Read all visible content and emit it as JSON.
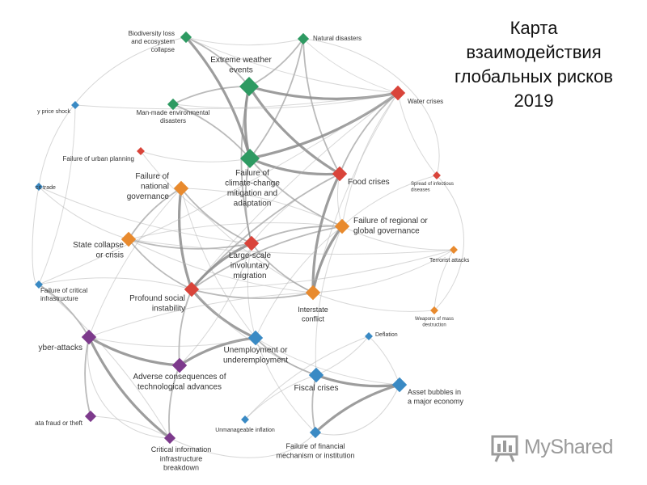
{
  "title": {
    "lines": [
      "Карта",
      "взаимодействия",
      "глобальных рисков",
      "2019"
    ]
  },
  "watermark": {
    "text": "MyShared"
  },
  "colors": {
    "environmental": "#2e9a62",
    "economic": "#3a8ac4",
    "geopolitical": "#e88a2e",
    "societal": "#d9443a",
    "technological": "#7d3a8c",
    "edge": "#b8b8b8",
    "edge_strong": "#8c8c8c"
  },
  "nodes": [
    {
      "id": "biodiversity",
      "category": "environmental",
      "size": "small",
      "label": [
        "Biodiversity loss",
        "and ecosystem",
        "collapse"
      ]
    },
    {
      "id": "natural_disasters",
      "category": "environmental",
      "size": "small",
      "label": [
        "Natural disasters"
      ]
    },
    {
      "id": "extreme_weather",
      "category": "environmental",
      "size": "large",
      "label": [
        "Extreme weather",
        "events"
      ]
    },
    {
      "id": "man_made",
      "category": "environmental",
      "size": "small",
      "label": [
        "Man-made environmental",
        "disasters"
      ]
    },
    {
      "id": "climate_change",
      "category": "environmental",
      "size": "large",
      "label": [
        "Failure of",
        "climate-change",
        "mitigation and",
        "adaptation"
      ]
    },
    {
      "id": "water_crises",
      "category": "societal",
      "size": "medium",
      "label": [
        "Water crises"
      ]
    },
    {
      "id": "energy_price",
      "category": "economic",
      "size": "tiny",
      "label": [
        "y price shock"
      ]
    },
    {
      "id": "urban_planning",
      "category": "societal",
      "size": "tiny",
      "label": [
        "Failure of urban planning"
      ]
    },
    {
      "id": "illicit_trade",
      "category": "economic",
      "size": "tiny",
      "label": [
        "cit trade"
      ]
    },
    {
      "id": "national_governance",
      "category": "geopolitical",
      "size": "medium",
      "label": [
        "Failure of",
        "national",
        "governance"
      ]
    },
    {
      "id": "food_crises",
      "category": "societal",
      "size": "medium",
      "label": [
        "Food crises"
      ]
    },
    {
      "id": "infectious_diseases",
      "category": "societal",
      "size": "tiny",
      "label": [
        "Spread of infectious",
        "diseases"
      ]
    },
    {
      "id": "regional_governance",
      "category": "geopolitical",
      "size": "medium",
      "label": [
        "Failure of regional or",
        "global governance"
      ]
    },
    {
      "id": "state_collapse",
      "category": "geopolitical",
      "size": "medium",
      "label": [
        "State collapse",
        "or crisis"
      ]
    },
    {
      "id": "terrorist_attacks",
      "category": "geopolitical",
      "size": "tiny",
      "label": [
        "Terrorist attacks"
      ]
    },
    {
      "id": "involuntary_migration",
      "category": "societal",
      "size": "medium",
      "label": [
        "Large-scale",
        "involuntary",
        "migration"
      ]
    },
    {
      "id": "critical_infrastructure",
      "category": "economic",
      "size": "tiny",
      "label": [
        "Failure of critical",
        "infrastructure"
      ]
    },
    {
      "id": "social_instability",
      "category": "societal",
      "size": "medium",
      "label": [
        "Profound social",
        "instability"
      ]
    },
    {
      "id": "interstate_conflict",
      "category": "geopolitical",
      "size": "medium",
      "label": [
        "Interstate",
        "conflict"
      ]
    },
    {
      "id": "mass_destruction",
      "category": "geopolitical",
      "size": "tiny",
      "label": [
        "Weapons of mass",
        "destruction"
      ]
    },
    {
      "id": "cyber_attacks",
      "category": "technological",
      "size": "medium",
      "label": [
        "yber-attacks"
      ]
    },
    {
      "id": "unemployment",
      "category": "economic",
      "size": "medium",
      "label": [
        "Unemployment or",
        "underemployment"
      ]
    },
    {
      "id": "deflation",
      "category": "economic",
      "size": "tiny",
      "label": [
        "Deflation"
      ]
    },
    {
      "id": "adverse_tech",
      "category": "technological",
      "size": "medium",
      "label": [
        "Adverse consequences of",
        "technological advances"
      ]
    },
    {
      "id": "fiscal_crises",
      "category": "economic",
      "size": "medium",
      "label": [
        "Fiscal crises"
      ]
    },
    {
      "id": "asset_bubbles",
      "category": "economic",
      "size": "medium",
      "label": [
        "Asset bubbles in",
        "a major economy"
      ]
    },
    {
      "id": "data_fraud",
      "category": "technological",
      "size": "small",
      "label": [
        "ata fraud or theft"
      ]
    },
    {
      "id": "unmanageable_inflation",
      "category": "economic",
      "size": "tiny",
      "label": [
        "Unmanageable inflation"
      ]
    },
    {
      "id": "info_breakdown",
      "category": "technological",
      "size": "small",
      "label": [
        "Critical information",
        "infrastructure",
        "breakdown"
      ]
    },
    {
      "id": "financial_failure",
      "category": "economic",
      "size": "small",
      "label": [
        "Failure of financial",
        "mechanism or institution"
      ]
    }
  ],
  "edges": [
    [
      "extreme_weather",
      "climate_change",
      "strong"
    ],
    [
      "extreme_weather",
      "food_crises",
      "strong"
    ],
    [
      "extreme_weather",
      "water_crises",
      "strong"
    ],
    [
      "extreme_weather",
      "natural_disasters",
      "medium"
    ],
    [
      "extreme_weather",
      "biodiversity",
      "medium"
    ],
    [
      "extreme_weather",
      "man_made",
      "medium"
    ],
    [
      "extreme_weather",
      "involuntary_migration",
      "medium"
    ],
    [
      "climate_change",
      "food_crises",
      "strong"
    ],
    [
      "climate_change",
      "water_crises",
      "strong"
    ],
    [
      "climate_change",
      "biodiversity",
      "strong"
    ],
    [
      "climate_change",
      "natural_disasters",
      "medium"
    ],
    [
      "climate_change",
      "involuntary_migration",
      "medium"
    ],
    [
      "climate_change",
      "regional_governance",
      "medium"
    ],
    [
      "climate_change",
      "man_made",
      "medium"
    ],
    [
      "biodiversity",
      "natural_disasters",
      "light"
    ],
    [
      "biodiversity",
      "water_crises",
      "light"
    ],
    [
      "natural_disasters",
      "water_crises",
      "light"
    ],
    [
      "natural_disasters",
      "food_crises",
      "medium"
    ],
    [
      "man_made",
      "water_crises",
      "light"
    ],
    [
      "water_crises",
      "food_crises",
      "medium"
    ],
    [
      "water_crises",
      "social_instability",
      "light"
    ],
    [
      "water_crises",
      "infectious_diseases",
      "light"
    ],
    [
      "water_crises",
      "regional_governance",
      "light"
    ],
    [
      "water_crises",
      "interstate_conflict",
      "light"
    ],
    [
      "food_crises",
      "social_instability",
      "medium"
    ],
    [
      "food_crises",
      "involuntary_migration",
      "light"
    ],
    [
      "food_crises",
      "interstate_conflict",
      "strong"
    ],
    [
      "food_crises",
      "regional_governance",
      "light"
    ],
    [
      "regional_governance",
      "involuntary_migration",
      "medium"
    ],
    [
      "regional_governance",
      "interstate_conflict",
      "strong"
    ],
    [
      "regional_governance",
      "social_instability",
      "medium"
    ],
    [
      "regional_governance",
      "terrorist_attacks",
      "light"
    ],
    [
      "regional_governance",
      "state_collapse",
      "light"
    ],
    [
      "regional_governance",
      "national_governance",
      "light"
    ],
    [
      "regional_governance",
      "fiscal_crises",
      "light"
    ],
    [
      "regional_governance",
      "unemployment",
      "light"
    ],
    [
      "national_governance",
      "social_instability",
      "strong"
    ],
    [
      "national_governance",
      "involuntary_migration",
      "medium"
    ],
    [
      "national_governance",
      "state_collapse",
      "medium"
    ],
    [
      "national_governance",
      "interstate_conflict",
      "light"
    ],
    [
      "national_governance",
      "unemployment",
      "light"
    ],
    [
      "national_governance",
      "cyber_attacks",
      "light"
    ],
    [
      "state_collapse",
      "involuntary_migration",
      "medium"
    ],
    [
      "state_collapse",
      "social_instability",
      "medium"
    ],
    [
      "state_collapse",
      "interstate_conflict",
      "light"
    ],
    [
      "state_collapse",
      "terrorist_attacks",
      "light"
    ],
    [
      "involuntary_migration",
      "social_instability",
      "strong"
    ],
    [
      "involuntary_migration",
      "interstate_conflict",
      "medium"
    ],
    [
      "involuntary_migration",
      "unemployment",
      "light"
    ],
    [
      "social_instability",
      "unemployment",
      "strong"
    ],
    [
      "social_instability",
      "adverse_tech",
      "medium"
    ],
    [
      "social_instability",
      "interstate_conflict",
      "medium"
    ],
    [
      "social_instability",
      "fiscal_crises",
      "light"
    ],
    [
      "social_instability",
      "critical_infrastructure",
      "light"
    ],
    [
      "social_instability",
      "terrorist_attacks",
      "light"
    ],
    [
      "interstate_conflict",
      "terrorist_attacks",
      "light"
    ],
    [
      "interstate_conflict",
      "mass_destruction",
      "light"
    ],
    [
      "interstate_conflict",
      "cyber_attacks",
      "light"
    ],
    [
      "unemployment",
      "fiscal_crises",
      "medium"
    ],
    [
      "unemployment",
      "adverse_tech",
      "strong"
    ],
    [
      "unemployment",
      "asset_bubbles",
      "light"
    ],
    [
      "unemployment",
      "financial_failure",
      "light"
    ],
    [
      "fiscal_crises",
      "asset_bubbles",
      "strong"
    ],
    [
      "fiscal_crises",
      "financial_failure",
      "medium"
    ],
    [
      "fiscal_crises",
      "deflation",
      "light"
    ],
    [
      "fiscal_crises",
      "unmanageable_inflation",
      "light"
    ],
    [
      "asset_bubbles",
      "financial_failure",
      "strong"
    ],
    [
      "asset_bubbles",
      "deflation",
      "light"
    ],
    [
      "cyber_attacks",
      "info_breakdown",
      "strong"
    ],
    [
      "cyber_attacks",
      "adverse_tech",
      "strong"
    ],
    [
      "cyber_attacks",
      "data_fraud",
      "medium"
    ],
    [
      "cyber_attacks",
      "critical_infrastructure",
      "medium"
    ],
    [
      "cyber_attacks",
      "unemployment",
      "light"
    ],
    [
      "adverse_tech",
      "info_breakdown",
      "medium"
    ],
    [
      "adverse_tech",
      "involuntary_migration",
      "light"
    ],
    [
      "info_breakdown",
      "critical_infrastructure",
      "light"
    ],
    [
      "info_breakdown",
      "data_fraud",
      "light"
    ],
    [
      "critical_infrastructure",
      "energy_price",
      "light"
    ],
    [
      "critical_infrastructure",
      "water_crises",
      "light"
    ],
    [
      "urban_planning",
      "involuntary_migration",
      "light"
    ],
    [
      "urban_planning",
      "climate_change",
      "light"
    ],
    [
      "energy_price",
      "water_crises",
      "light"
    ],
    [
      "illicit_trade",
      "state_collapse",
      "light"
    ],
    [
      "illicit_trade",
      "involuntary_migration",
      "light"
    ],
    [
      "infectious_diseases",
      "regional_governance",
      "light"
    ],
    [
      "terrorist_attacks",
      "mass_destruction",
      "light"
    ],
    [
      "deflation",
      "unmanageable_inflation",
      "light"
    ]
  ]
}
